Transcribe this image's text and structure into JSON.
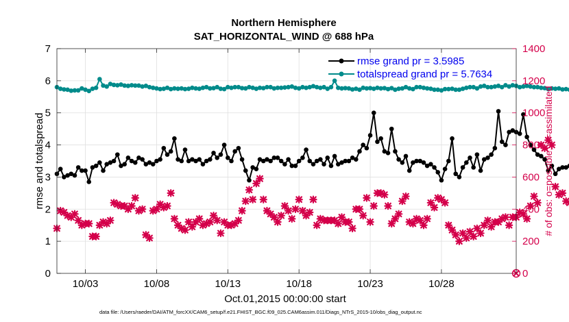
{
  "chart_data": {
    "type": "line",
    "title": "Northern Hemisphere",
    "subtitle": "SAT_HORIZONTAL_WIND @ 688 hPa",
    "xlabel": "Oct.01,2015 00:00:00 start",
    "ylabel_left": "rmse and totalspread",
    "ylabel_right": "# of obs: o=possible; ×=assimilated",
    "footer": "data file: /Users/raeder/DAI/ATM_forcXX/CAM6_setup/f.e21.FHIST_BGC.f09_025.CAM6assim.011/Diags_NTrS_2015-10/obs_diag_output.nc",
    "xlim": [
      1,
      33.25
    ],
    "ylim_left": [
      0,
      7
    ],
    "ylim_right": [
      0,
      1400
    ],
    "x_ticks": [
      3,
      8,
      13,
      18,
      23,
      28
    ],
    "x_tick_labels": [
      "10/03",
      "10/08",
      "10/13",
      "10/18",
      "10/23",
      "10/28"
    ],
    "y_ticks_left": [
      "0",
      "1",
      "2",
      "3",
      "4",
      "5",
      "6",
      "7"
    ],
    "y_ticks_right": [
      "0",
      "200",
      "400",
      "600",
      "800",
      "1000",
      "1200",
      "1400"
    ],
    "legend": [
      "rmse grand pr = 3.5985",
      "totalspread grand pr = 5.7634"
    ],
    "legend_position": "top-right",
    "grid": true,
    "x_start": 1,
    "x_step": 0.25,
    "colors": {
      "rmse": "#000000",
      "totalspread": "#008b8b",
      "obs": "#d4004a"
    },
    "series": [
      {
        "name": "rmse",
        "axis": "left",
        "marker": "dot",
        "values": [
          3.1,
          3.25,
          3.0,
          3.05,
          3.1,
          3.05,
          3.3,
          3.2,
          3.2,
          2.85,
          3.3,
          3.35,
          3.45,
          3.2,
          3.4,
          3.45,
          3.5,
          3.7,
          3.35,
          3.4,
          3.6,
          3.5,
          3.45,
          3.6,
          3.55,
          3.4,
          3.45,
          3.4,
          3.5,
          3.55,
          3.9,
          3.7,
          3.8,
          4.2,
          3.55,
          3.5,
          3.85,
          3.5,
          3.55,
          3.5,
          3.55,
          3.4,
          3.5,
          3.55,
          3.75,
          3.6,
          3.7,
          4.0,
          3.6,
          3.5,
          3.8,
          3.9,
          3.55,
          3.2,
          2.9,
          3.3,
          3.25,
          3.55,
          3.5,
          3.55,
          3.5,
          3.6,
          3.6,
          3.5,
          3.4,
          3.55,
          3.35,
          3.35,
          3.5,
          3.6,
          3.85,
          3.5,
          3.4,
          3.5,
          3.55,
          3.4,
          3.6,
          3.35,
          3.65,
          3.4,
          3.45,
          3.5,
          3.5,
          3.6,
          3.55,
          3.8,
          4.0,
          3.9,
          4.3,
          5.0,
          4.1,
          4.2,
          3.8,
          3.75,
          4.5,
          3.8,
          3.55,
          3.45,
          3.65,
          3.2,
          3.45,
          3.5,
          3.5,
          3.45,
          3.35,
          3.4,
          3.3,
          3.15,
          2.9,
          3.25,
          3.5,
          4.2,
          3.1,
          3.0,
          3.3,
          3.45,
          3.6,
          3.3,
          3.7,
          3.2,
          3.55,
          3.6,
          3.7,
          3.9,
          5.05,
          4.1,
          4.0,
          4.4,
          4.45,
          4.4,
          4.35,
          4.95,
          4.25,
          4.0,
          3.85,
          3.7,
          3.65,
          3.55,
          3.2,
          3.35,
          3.1,
          3.25,
          3.3,
          3.3,
          3.35,
          3.3,
          3.5,
          3.6
        ]
      },
      {
        "name": "totalspread",
        "axis": "left",
        "marker": "dot",
        "values": [
          5.8,
          5.75,
          5.73,
          5.72,
          5.69,
          5.7,
          5.7,
          5.76,
          5.72,
          5.68,
          5.75,
          5.78,
          6.05,
          5.85,
          5.82,
          5.9,
          5.87,
          5.86,
          5.88,
          5.85,
          5.84,
          5.86,
          5.85,
          5.85,
          5.82,
          5.84,
          5.8,
          5.78,
          5.76,
          5.74,
          5.75,
          5.78,
          5.74,
          5.76,
          5.75,
          5.76,
          5.74,
          5.75,
          5.78,
          5.76,
          5.75,
          5.78,
          5.8,
          5.76,
          5.77,
          5.8,
          5.75,
          5.74,
          5.8,
          5.78,
          5.8,
          5.8,
          5.77,
          5.76,
          5.8,
          5.78,
          5.75,
          5.78,
          5.77,
          5.8,
          5.8,
          5.76,
          5.78,
          5.78,
          5.79,
          5.8,
          5.82,
          5.78,
          5.76,
          5.8,
          5.78,
          5.8,
          5.83,
          5.8,
          5.78,
          5.8,
          5.75,
          5.8,
          6.0,
          5.78,
          5.76,
          5.77,
          5.76,
          5.73,
          5.75,
          5.72,
          5.78,
          5.76,
          5.77,
          5.75,
          5.78,
          5.76,
          5.77,
          5.74,
          5.77,
          5.72,
          5.75,
          5.76,
          5.8,
          5.76,
          5.74,
          5.8,
          5.8,
          5.78,
          5.76,
          5.75,
          5.72,
          5.72,
          5.7,
          5.74,
          5.74,
          5.75,
          5.72,
          5.72,
          5.75,
          5.78,
          5.8,
          5.8,
          5.76,
          5.82,
          5.84,
          5.8,
          5.8,
          5.82,
          5.84,
          5.8,
          5.86,
          5.82,
          5.86,
          5.84,
          5.8,
          5.82,
          5.84,
          5.82,
          5.8,
          5.8,
          5.78,
          5.77,
          5.74,
          5.76,
          5.75,
          5.76,
          5.73,
          5.74,
          5.72,
          5.7,
          5.71,
          5.74,
          5.72,
          5.73
        ]
      },
      {
        "name": "obs_assimilated",
        "axis": "right",
        "marker": "x",
        "values": [
          280,
          390,
          380,
          360,
          350,
          370,
          330,
          300,
          310,
          310,
          230,
          230,
          300,
          320,
          310,
          330,
          440,
          430,
          420,
          420,
          400,
          420,
          470,
          390,
          400,
          240,
          220,
          390,
          400,
          430,
          410,
          420,
          500,
          340,
          300,
          280,
          270,
          320,
          290,
          320,
          340,
          300,
          310,
          320,
          360,
          330,
          250,
          320,
          300,
          300,
          310,
          330,
          390,
          450,
          520,
          460,
          560,
          590,
          460,
          390,
          370,
          350,
          320,
          360,
          420,
          390,
          340,
          400,
          460,
          390,
          360,
          380,
          460,
          300,
          340,
          330,
          330,
          330,
          330,
          310,
          350,
          320,
          320,
          280,
          400,
          400,
          360,
          470,
          320,
          420,
          500,
          500,
          490,
          420,
          310,
          340,
          370,
          450,
          480,
          320,
          310,
          340,
          330,
          300,
          340,
          440,
          410,
          470,
          460,
          440,
          300,
          270,
          240,
          200,
          250,
          220,
          260,
          230,
          280,
          250,
          300,
          330,
          290,
          320,
          320,
          340,
          350,
          300,
          350,
          350,
          380,
          370,
          340,
          420,
          480,
          440,
          800,
          780,
          830,
          800,
          540,
          490,
          500,
          450,
          440,
          420,
          400,
          440,
          400,
          340,
          460,
          420,
          430,
          360,
          440,
          340,
          300
        ]
      },
      {
        "name": "obs_possible",
        "axis": "right",
        "marker": "o",
        "values": [
          0
        ]
      }
    ]
  }
}
